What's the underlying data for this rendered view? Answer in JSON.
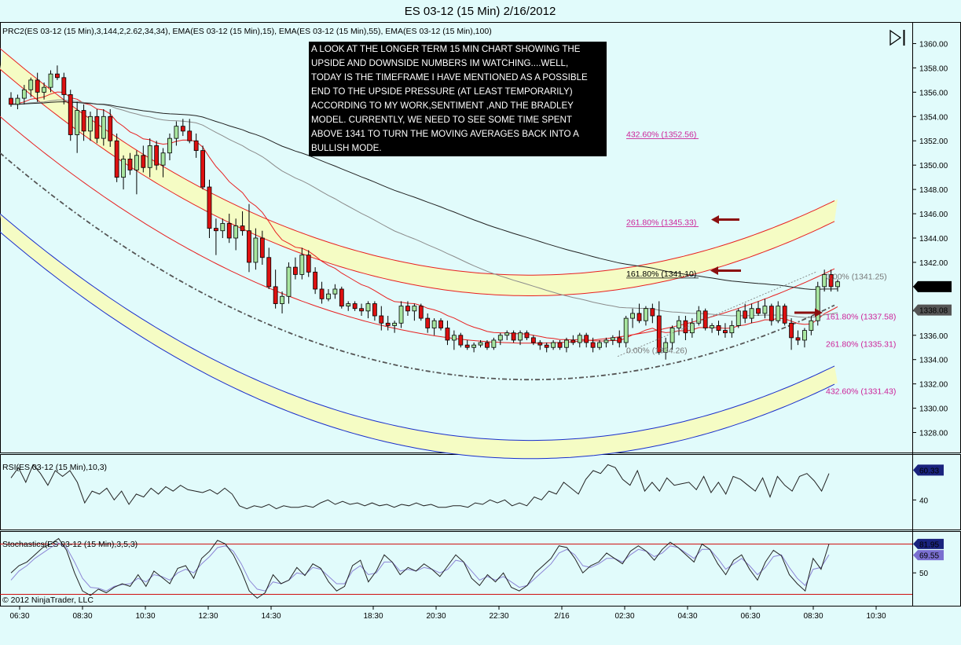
{
  "title": "ES 03-12 (15 Min)  2/16/2012",
  "panels": {
    "price_label": "PRC2(ES 03-12 (15 Min),3,144,2,2.62,34,34), EMA(ES 03-12 (15 Min),15), EMA(ES 03-12 (15 Min),55), EMA(ES 03-12 (15 Min),100)",
    "rsi_label": "RSI(ES 03-12 (15 Min),10,3)",
    "stoch_label": "Stochastics(ES 03-12 (15 Min),3,5,3)"
  },
  "copyright": "© 2012 NinjaTrader, LLC",
  "annotation_lines": [
    " A LOOK AT THE LONGER TERM 15 MIN CHART SHOWING THE",
    "UPSIDE AND DOWNSIDE NUMBERS IM WATCHING....WELL,",
    "TODAY IS THE TIMEFRAME I HAVE MENTIONED AS A POSSIBLE",
    "END TO THE UPSIDE PRESSURE (AT LEAST TEMPORARILY)",
    "ACCORDING TO MY WORK,SENTIMENT ,AND THE BRADLEY",
    "MODEL. CURRENTLY, WE NEED TO SEE SOME TIME SPENT",
    "ABOVE 1341 TO TURN THE MOVING AVERAGES BACK INTO A",
    "BULLISH MODE."
  ],
  "colors": {
    "background": "#e1fbfb",
    "up_candle": "#a8e6a0",
    "down_candle": "#dd1111",
    "band_fill": "#f5fcc4",
    "regression_red": "#e82020",
    "regression_blue": "#1a2ecc",
    "ema_dark": "#222222",
    "ema_gray": "#8c8c8c",
    "fib_magenta": "#cc2299",
    "oscillator_line": "#222222",
    "oscillator_signal": "#8d86d6"
  },
  "chart_data": {
    "type": "candlestick",
    "title": "ES 03-12 (15 Min)  2/16/2012",
    "x_tick_labels": [
      "06:30",
      "08:30",
      "10:30",
      "12:30",
      "14:30",
      "18:30",
      "20:30",
      "22:30",
      "2/16",
      "02:30",
      "04:30",
      "06:30",
      "08:30",
      "10:30"
    ],
    "price_axis": {
      "ylim": [
        1327,
        1361
      ],
      "tick_labels": [
        "1360.00",
        "1358.00",
        "1356.00",
        "1354.00",
        "1352.00",
        "1350.00",
        "1348.00",
        "1346.00",
        "1344.00",
        "1342.00",
        "1340.00",
        "1338.00",
        "1336.00",
        "1334.00",
        "1332.00",
        "1330.00",
        "1328.00"
      ],
      "badges": [
        "1340.00",
        "1338.08"
      ]
    },
    "candles": [
      [
        1355.5,
        1356.0,
        1354.8,
        1355.0
      ],
      [
        1355.0,
        1355.8,
        1354.6,
        1355.5
      ],
      [
        1355.5,
        1356.6,
        1355.0,
        1356.2
      ],
      [
        1356.2,
        1357.2,
        1355.6,
        1357.0
      ],
      [
        1357.0,
        1357.6,
        1355.2,
        1356.0
      ],
      [
        1356.0,
        1356.8,
        1355.4,
        1356.4
      ],
      [
        1356.4,
        1357.8,
        1356.0,
        1357.5
      ],
      [
        1357.5,
        1358.2,
        1357.0,
        1357.2
      ],
      [
        1357.2,
        1357.6,
        1355.0,
        1355.8
      ],
      [
        1355.8,
        1356.2,
        1352.0,
        1352.5
      ],
      [
        1352.5,
        1355.2,
        1351.0,
        1354.5
      ],
      [
        1354.5,
        1355.0,
        1352.0,
        1352.8
      ],
      [
        1352.8,
        1354.4,
        1352.0,
        1354.0
      ],
      [
        1354.0,
        1354.6,
        1351.8,
        1352.2
      ],
      [
        1352.2,
        1354.6,
        1351.6,
        1354.0
      ],
      [
        1354.0,
        1354.6,
        1351.5,
        1352.0
      ],
      [
        1352.0,
        1352.6,
        1348.6,
        1349.0
      ],
      [
        1349.0,
        1350.8,
        1348.0,
        1350.5
      ],
      [
        1350.5,
        1351.0,
        1349.2,
        1349.6
      ],
      [
        1349.6,
        1351.2,
        1347.6,
        1350.8
      ],
      [
        1350.8,
        1351.6,
        1349.4,
        1349.8
      ],
      [
        1349.8,
        1352.2,
        1349.0,
        1351.6
      ],
      [
        1351.6,
        1352.0,
        1349.6,
        1350.0
      ],
      [
        1350.0,
        1351.4,
        1349.0,
        1351.0
      ],
      [
        1351.0,
        1352.6,
        1350.4,
        1352.2
      ],
      [
        1352.2,
        1353.6,
        1351.6,
        1353.2
      ],
      [
        1353.2,
        1353.8,
        1352.4,
        1352.8
      ],
      [
        1352.8,
        1353.8,
        1351.8,
        1352.0
      ],
      [
        1352.0,
        1352.6,
        1350.6,
        1351.2
      ],
      [
        1351.2,
        1351.6,
        1348.0,
        1348.2
      ],
      [
        1348.2,
        1348.8,
        1344.0,
        1344.8
      ],
      [
        1344.8,
        1345.6,
        1342.6,
        1344.6
      ],
      [
        1344.6,
        1345.6,
        1344.0,
        1345.2
      ],
      [
        1345.2,
        1346.0,
        1343.6,
        1344.0
      ],
      [
        1344.0,
        1345.6,
        1343.0,
        1345.0
      ],
      [
        1345.0,
        1346.2,
        1344.2,
        1344.6
      ],
      [
        1344.6,
        1346.8,
        1341.2,
        1342.0
      ],
      [
        1342.0,
        1344.8,
        1341.4,
        1344.0
      ],
      [
        1344.0,
        1344.6,
        1341.8,
        1342.4
      ],
      [
        1342.4,
        1343.2,
        1339.8,
        1340.0
      ],
      [
        1340.0,
        1341.4,
        1338.2,
        1338.6
      ],
      [
        1338.6,
        1339.6,
        1337.8,
        1339.2
      ],
      [
        1339.2,
        1342.0,
        1338.6,
        1341.6
      ],
      [
        1341.6,
        1342.4,
        1340.6,
        1341.0
      ],
      [
        1341.0,
        1343.2,
        1340.6,
        1342.6
      ],
      [
        1342.6,
        1343.0,
        1340.8,
        1341.2
      ],
      [
        1341.2,
        1341.6,
        1339.4,
        1339.8
      ],
      [
        1339.8,
        1340.4,
        1338.6,
        1339.0
      ],
      [
        1339.0,
        1339.8,
        1338.8,
        1339.4
      ],
      [
        1339.4,
        1340.2,
        1339.0,
        1339.8
      ],
      [
        1339.8,
        1340.0,
        1338.2,
        1338.4
      ],
      [
        1338.4,
        1338.8,
        1338.0,
        1338.6
      ],
      [
        1338.6,
        1338.8,
        1338.0,
        1338.2
      ],
      [
        1338.2,
        1338.6,
        1337.6,
        1338.0
      ],
      [
        1338.0,
        1338.8,
        1337.4,
        1338.6
      ],
      [
        1338.6,
        1338.8,
        1337.2,
        1337.6
      ],
      [
        1337.6,
        1338.4,
        1336.4,
        1337.0
      ],
      [
        1337.0,
        1337.6,
        1336.4,
        1336.8
      ],
      [
        1336.8,
        1337.2,
        1336.2,
        1337.0
      ],
      [
        1337.0,
        1338.8,
        1336.6,
        1338.4
      ],
      [
        1338.4,
        1338.8,
        1337.6,
        1338.0
      ],
      [
        1338.0,
        1338.6,
        1337.2,
        1338.4
      ],
      [
        1338.4,
        1338.6,
        1337.2,
        1337.4
      ],
      [
        1337.4,
        1337.8,
        1336.2,
        1336.6
      ],
      [
        1336.6,
        1337.4,
        1336.0,
        1337.2
      ],
      [
        1337.2,
        1337.4,
        1336.4,
        1336.6
      ],
      [
        1336.6,
        1337.2,
        1335.2,
        1335.6
      ],
      [
        1335.6,
        1336.4,
        1334.8,
        1336.0
      ],
      [
        1336.0,
        1336.2,
        1335.0,
        1335.2
      ],
      [
        1335.2,
        1335.6,
        1334.8,
        1335.0
      ],
      [
        1335.0,
        1335.4,
        1334.6,
        1335.2
      ],
      [
        1335.2,
        1335.6,
        1335.0,
        1335.4
      ],
      [
        1335.4,
        1335.6,
        1334.8,
        1335.0
      ],
      [
        1335.0,
        1335.8,
        1334.8,
        1335.6
      ],
      [
        1335.6,
        1336.2,
        1335.2,
        1336.0
      ],
      [
        1336.0,
        1336.4,
        1335.6,
        1336.2
      ],
      [
        1336.2,
        1336.4,
        1335.4,
        1335.6
      ],
      [
        1335.6,
        1336.4,
        1335.2,
        1336.2
      ],
      [
        1336.2,
        1336.4,
        1335.6,
        1335.8
      ],
      [
        1335.8,
        1336.0,
        1335.2,
        1335.4
      ],
      [
        1335.4,
        1335.6,
        1334.8,
        1335.2
      ],
      [
        1335.2,
        1335.4,
        1334.6,
        1335.0
      ],
      [
        1335.0,
        1335.6,
        1334.8,
        1335.4
      ],
      [
        1335.4,
        1335.6,
        1334.8,
        1335.0
      ],
      [
        1335.0,
        1335.8,
        1334.6,
        1335.6
      ],
      [
        1335.6,
        1336.0,
        1335.2,
        1335.4
      ],
      [
        1335.4,
        1336.2,
        1335.0,
        1336.0
      ],
      [
        1336.0,
        1336.2,
        1335.0,
        1335.4
      ],
      [
        1335.4,
        1335.8,
        1334.6,
        1335.0
      ],
      [
        1335.0,
        1335.6,
        1334.8,
        1335.4
      ],
      [
        1335.4,
        1335.8,
        1335.0,
        1335.6
      ],
      [
        1335.6,
        1336.0,
        1335.2,
        1335.8
      ],
      [
        1335.8,
        1336.4,
        1335.0,
        1335.4
      ],
      [
        1335.4,
        1337.6,
        1335.0,
        1337.4
      ],
      [
        1337.4,
        1338.2,
        1336.6,
        1337.8
      ],
      [
        1337.8,
        1338.6,
        1337.0,
        1337.2
      ],
      [
        1337.2,
        1338.4,
        1336.8,
        1338.2
      ],
      [
        1338.2,
        1338.6,
        1337.0,
        1337.6
      ],
      [
        1337.6,
        1338.8,
        1334.4,
        1334.6
      ],
      [
        1334.6,
        1335.8,
        1334.0,
        1335.4
      ],
      [
        1335.4,
        1336.8,
        1334.8,
        1336.6
      ],
      [
        1336.6,
        1337.6,
        1336.0,
        1337.2
      ],
      [
        1337.2,
        1337.6,
        1335.6,
        1336.2
      ],
      [
        1336.2,
        1337.4,
        1335.8,
        1337.0
      ],
      [
        1337.0,
        1338.4,
        1336.8,
        1338.0
      ],
      [
        1338.0,
        1338.2,
        1336.4,
        1336.6
      ],
      [
        1336.6,
        1337.0,
        1336.2,
        1336.8
      ],
      [
        1336.8,
        1337.2,
        1336.0,
        1336.4
      ],
      [
        1336.4,
        1337.0,
        1335.8,
        1336.2
      ],
      [
        1336.2,
        1337.2,
        1335.8,
        1336.8
      ],
      [
        1336.8,
        1338.2,
        1336.6,
        1338.0
      ],
      [
        1338.0,
        1338.6,
        1337.0,
        1337.4
      ],
      [
        1337.4,
        1338.6,
        1337.0,
        1338.2
      ],
      [
        1338.2,
        1338.8,
        1337.6,
        1337.8
      ],
      [
        1337.8,
        1339.0,
        1337.4,
        1338.4
      ],
      [
        1338.4,
        1338.6,
        1336.8,
        1337.2
      ],
      [
        1337.2,
        1338.8,
        1337.0,
        1338.4
      ],
      [
        1338.4,
        1338.6,
        1336.8,
        1337.0
      ],
      [
        1337.0,
        1337.4,
        1334.8,
        1335.8
      ],
      [
        1335.8,
        1336.4,
        1335.2,
        1335.6
      ],
      [
        1335.6,
        1336.6,
        1335.0,
        1336.4
      ],
      [
        1336.4,
        1337.6,
        1336.0,
        1337.2
      ],
      [
        1337.2,
        1340.4,
        1336.8,
        1340.0
      ],
      [
        1340.0,
        1341.4,
        1339.6,
        1341.0
      ],
      [
        1341.0,
        1341.4,
        1339.6,
        1340.0
      ],
      [
        1340.0,
        1340.6,
        1339.6,
        1340.4
      ]
    ],
    "fib_levels": [
      {
        "label": "432.60% (1352.56)",
        "value": 1352.56
      },
      {
        "label": "261.80% (1345.33)",
        "value": 1345.33
      },
      {
        "label": "161.80% (1341.10)",
        "value": 1341.1
      },
      {
        "label": "0.00% (1341.25)",
        "value": 1341.25
      },
      {
        "label": "161.80% (1337.58)",
        "value": 1337.58
      },
      {
        "label": "261.80% (1335.31)",
        "value": 1335.31
      },
      {
        "label": "432.60% (1331.43)",
        "value": 1331.43
      },
      {
        "label": "0.00% (1334.26)",
        "value": 1334.26
      }
    ],
    "rsi": {
      "tick_labels": [
        "40"
      ],
      "badge": "60.33",
      "ylim": [
        22,
        68
      ],
      "values": [
        55,
        62,
        52,
        64,
        58,
        50,
        60,
        56,
        60,
        52,
        38,
        46,
        44,
        48,
        40,
        46,
        37,
        44,
        42,
        48,
        44,
        49,
        46,
        50,
        47,
        46,
        45,
        47,
        44,
        48,
        44,
        36,
        34,
        36,
        35,
        37,
        34,
        36,
        35,
        35,
        36,
        35,
        38,
        40,
        37,
        39,
        37,
        38,
        36,
        38,
        36,
        37,
        35,
        37,
        36,
        38,
        36,
        37,
        35,
        35,
        36,
        36,
        35,
        38,
        37,
        40,
        38,
        40,
        36,
        38,
        36,
        42,
        40,
        46,
        44,
        52,
        48,
        44,
        54,
        60,
        58,
        64,
        62,
        54,
        50,
        60,
        46,
        52,
        46,
        55,
        50,
        51,
        52,
        47,
        56,
        45,
        52,
        44,
        56,
        54,
        50,
        46,
        55,
        42,
        56,
        50,
        46,
        56,
        58,
        53,
        46,
        58
      ]
    },
    "stochastics": {
      "tick_labels": [
        "50"
      ],
      "badges": [
        "81.95",
        "69.55"
      ],
      "ylim": [
        18,
        91
      ],
      "k": [
        50,
        58,
        62,
        70,
        78,
        82,
        88,
        75,
        50,
        30,
        25,
        32,
        28,
        34,
        38,
        35,
        48,
        35,
        52,
        45,
        38,
        55,
        58,
        44,
        66,
        74,
        86,
        82,
        70,
        52,
        30,
        22,
        28,
        48,
        38,
        42,
        56,
        47,
        60,
        55,
        40,
        30,
        35,
        58,
        64,
        40,
        52,
        70,
        62,
        48,
        56,
        52,
        60,
        54,
        46,
        58,
        70,
        62,
        44,
        36,
        48,
        40,
        50,
        34,
        30,
        36,
        50,
        58,
        66,
        80,
        78,
        66,
        50,
        58,
        62,
        72,
        66,
        60,
        74,
        80,
        74,
        64,
        76,
        84,
        78,
        70,
        62,
        82,
        76,
        60,
        48,
        64,
        70,
        54,
        42,
        62,
        75,
        69,
        48,
        38,
        30,
        66,
        54,
        82
      ],
      "d": [
        42,
        52,
        58,
        66,
        72,
        78,
        83,
        78,
        62,
        44,
        34,
        33,
        30,
        35,
        37,
        38,
        44,
        40,
        48,
        46,
        42,
        50,
        54,
        50,
        60,
        68,
        78,
        80,
        74,
        60,
        42,
        32,
        30,
        40,
        38,
        42,
        50,
        48,
        56,
        54,
        46,
        38,
        38,
        52,
        58,
        48,
        50,
        62,
        62,
        52,
        54,
        52,
        56,
        54,
        50,
        54,
        64,
        62,
        52,
        42,
        46,
        42,
        46,
        40,
        34,
        36,
        44,
        52,
        60,
        72,
        76,
        70,
        58,
        56,
        60,
        66,
        66,
        62,
        70,
        76,
        74,
        68,
        72,
        80,
        78,
        72,
        66,
        76,
        76,
        66,
        54,
        60,
        66,
        58,
        48,
        56,
        68,
        70,
        56,
        44,
        36,
        54,
        56,
        70
      ]
    }
  }
}
